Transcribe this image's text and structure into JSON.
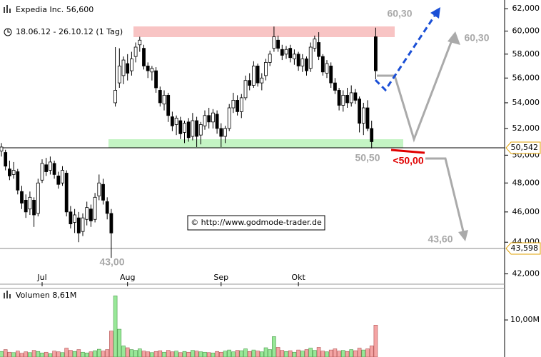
{
  "header": {
    "title": "Expedia Inc. 56,600",
    "period": "18.06.12 - 26.10.12 (1 Tag)",
    "watermark": "© http://www.godmode-trader.de"
  },
  "annotations": [
    "60,30",
    "60,30",
    "50,50",
    "<50,00",
    "43,60",
    "43,00"
  ],
  "chart_data": [
    {
      "type": "candlestick",
      "log_scale": true,
      "up_color": "#ffffff",
      "down_color": "#000000",
      "categories": [
        null,
        null,
        null,
        null,
        null,
        null,
        null,
        null,
        null,
        null,
        "Jul",
        null,
        null,
        null,
        null,
        null,
        null,
        null,
        null,
        null,
        null,
        null,
        null,
        null,
        null,
        null,
        null,
        null,
        null,
        null,
        null,
        "Aug",
        null,
        null,
        null,
        null,
        null,
        null,
        null,
        null,
        null,
        null,
        null,
        null,
        null,
        null,
        null,
        null,
        null,
        null,
        null,
        null,
        null,
        null,
        "Sep",
        null,
        null,
        null,
        null,
        null,
        null,
        null,
        null,
        null,
        null,
        null,
        null,
        null,
        null,
        null,
        null,
        null,
        null,
        "Okt",
        null,
        null,
        null,
        null,
        null,
        null,
        null,
        null,
        null,
        null,
        null,
        null,
        null,
        null,
        null,
        null,
        null,
        null,
        null
      ],
      "open": [
        50.3,
        50.2,
        49.0,
        48.6,
        48.8,
        47.4,
        46.8,
        46.2,
        46.8,
        45.9,
        48.2,
        49.3,
        48.9,
        49.4,
        48.5,
        48.0,
        48.7,
        46.0,
        45.3,
        45.6,
        44.7,
        45.5,
        46.2,
        45.5,
        47.1,
        47.9,
        46.7,
        45.9,
        54.0,
        55.6,
        56.2,
        57.2,
        56.6,
        57.8,
        58.8,
        58.5,
        57.0,
        56.5,
        56.6,
        55.0,
        53.9,
        54.6,
        52.9,
        52.3,
        52.6,
        51.7,
        52.5,
        51.4,
        52.6,
        51.5,
        52.2,
        53.0,
        52.5,
        53.1,
        52.0,
        51.4,
        52.0,
        53.6,
        54.2,
        53.3,
        54.4,
        55.8,
        55.4,
        57.0,
        55.6,
        56.2,
        57.3,
        58.5,
        59.2,
        58.4,
        58.0,
        58.5,
        57.6,
        58.0,
        57.0,
        57.6,
        56.8,
        58.5,
        59.0,
        57.8,
        56.4,
        57.0,
        55.6,
        55.0,
        53.8,
        54.6,
        54.0,
        54.8,
        54.3,
        52.4,
        53.6,
        52.0,
        59.5
      ],
      "high": [
        50.9,
        50.4,
        49.6,
        49.5,
        49.0,
        47.8,
        47.2,
        47.4,
        47.0,
        48.3,
        49.7,
        49.8,
        49.9,
        49.6,
        48.8,
        49.2,
        48.9,
        46.4,
        46.2,
        46.0,
        45.9,
        46.7,
        46.5,
        47.3,
        48.6,
        48.3,
        47.0,
        46.2,
        58.6,
        58.5,
        57.8,
        58.0,
        58.2,
        59.0,
        59.5,
        58.8,
        57.3,
        57.0,
        56.9,
        55.3,
        55.0,
        54.8,
        53.3,
        53.0,
        52.9,
        52.6,
        52.8,
        53.2,
        52.9,
        52.5,
        53.4,
        53.6,
        53.5,
        53.4,
        52.4,
        52.2,
        53.9,
        54.8,
        54.6,
        54.7,
        56.2,
        56.4,
        57.4,
        57.2,
        56.4,
        57.6,
        58.3,
        60.4,
        59.6,
        58.8,
        58.7,
        58.8,
        58.4,
        58.2,
        58.0,
        57.8,
        59.0,
        59.6,
        59.9,
        58.0,
        57.5,
        57.3,
        56.0,
        55.2,
        55.0,
        55.2,
        55.4,
        55.1,
        54.5,
        54.0,
        54.2,
        52.6,
        60.3
      ],
      "low": [
        49.9,
        48.9,
        48.2,
        48.3,
        47.2,
        46.2,
        45.6,
        45.8,
        45.0,
        45.7,
        48.0,
        48.5,
        48.6,
        48.3,
        47.6,
        47.8,
        45.7,
        44.9,
        44.6,
        44.0,
        44.4,
        45.1,
        45.0,
        45.3,
        46.8,
        46.5,
        45.5,
        43.0,
        53.7,
        55.2,
        55.5,
        55.8,
        56.2,
        57.3,
        58.2,
        56.7,
        56.0,
        55.8,
        54.8,
        53.7,
        53.4,
        52.5,
        51.8,
        51.5,
        51.2,
        50.9,
        51.0,
        51.1,
        50.6,
        50.8,
        51.9,
        52.0,
        52.0,
        51.6,
        50.6,
        50.9,
        51.8,
        53.2,
        53.0,
        52.8,
        54.2,
        55.0,
        55.2,
        55.3,
        55.0,
        55.8,
        57.0,
        58.2,
        58.2,
        57.5,
        57.6,
        57.3,
        57.1,
        56.6,
        56.5,
        56.2,
        56.5,
        58.2,
        57.5,
        56.2,
        56.0,
        55.2,
        54.7,
        53.4,
        53.3,
        53.6,
        53.7,
        53.9,
        51.7,
        51.5,
        51.8,
        50.5,
        55.9
      ],
      "close": [
        50.6,
        49.2,
        48.5,
        48.9,
        47.5,
        46.6,
        46.0,
        47.0,
        45.8,
        48.0,
        49.4,
        48.8,
        49.5,
        48.6,
        47.9,
        48.9,
        46.0,
        45.2,
        45.8,
        44.6,
        45.6,
        46.3,
        45.4,
        47.0,
        48.0,
        46.8,
        45.9,
        44.6,
        55.0,
        57.0,
        57.5,
        56.4,
        57.6,
        58.6,
        59.2,
        57.0,
        56.6,
        56.8,
        55.2,
        54.0,
        54.6,
        53.0,
        52.2,
        52.8,
        51.6,
        52.4,
        51.3,
        52.6,
        51.4,
        52.3,
        53.0,
        52.5,
        53.2,
        52.0,
        51.4,
        52.0,
        53.6,
        54.2,
        53.3,
        54.4,
        55.8,
        55.4,
        57.0,
        55.6,
        56.0,
        57.3,
        58.0,
        59.5,
        58.5,
        57.9,
        58.4,
        57.7,
        58.0,
        57.0,
        57.6,
        56.6,
        58.6,
        59.3,
        57.8,
        56.5,
        57.2,
        55.6,
        55.0,
        53.8,
        54.6,
        54.0,
        54.8,
        54.2,
        52.4,
        53.6,
        52.0,
        51.0,
        56.6
      ],
      "ylim": [
        41.5,
        62.8
      ],
      "yticks": [
        {
          "value": 62,
          "label": "62,000"
        },
        {
          "value": 60,
          "label": "60,000"
        },
        {
          "value": 58,
          "label": "58,000"
        },
        {
          "value": 56,
          "label": "56,000"
        },
        {
          "value": 54,
          "label": "54,000"
        },
        {
          "value": 52,
          "label": "52,000"
        },
        {
          "value": 50,
          "label": "50,000"
        },
        {
          "value": 48,
          "label": "48,000"
        },
        {
          "value": 46,
          "label": "46,000"
        },
        {
          "value": 44,
          "label": "44,000"
        },
        {
          "value": 42,
          "label": "42,000"
        }
      ],
      "reference_lines": [
        {
          "value": 50.542,
          "label": "50,542",
          "color": "#000000"
        },
        {
          "value": 43.598,
          "label": "43,598",
          "color": "#888888"
        }
      ]
    },
    {
      "type": "bar",
      "title": "Volumen 8,61M",
      "up_color": "#98e898",
      "down_color": "#f4a4a4",
      "values": [
        1.5,
        2.0,
        1.3,
        1.2,
        1.6,
        1.0,
        1.4,
        1.2,
        1.8,
        1.5,
        1.1,
        1.3,
        0.9,
        1.6,
        1.4,
        1.2,
        2.4,
        1.8,
        1.5,
        2.0,
        1.3,
        1.1,
        1.4,
        1.7,
        2.1,
        1.6,
        2.0,
        7.0,
        16.5,
        7.5,
        3.0,
        2.5,
        2.0,
        1.8,
        2.2,
        1.6,
        1.4,
        1.2,
        1.5,
        1.7,
        1.3,
        1.8,
        1.4,
        1.6,
        1.2,
        1.5,
        1.3,
        1.8,
        1.6,
        1.4,
        1.3,
        1.2,
        1.1,
        1.5,
        1.3,
        1.6,
        1.9,
        1.4,
        1.8,
        1.7,
        2.2,
        1.5,
        1.9,
        1.6,
        1.4,
        2.5,
        2.0,
        5.5,
        2.6,
        1.8,
        1.5,
        1.7,
        1.3,
        1.9,
        1.6,
        2.0,
        2.4,
        1.8,
        2.6,
        1.6,
        1.4,
        1.9,
        2.2,
        1.6,
        1.8,
        1.5,
        2.0,
        1.7,
        2.4,
        1.9,
        2.2,
        3.0,
        8.61
      ],
      "ylim": [
        0,
        18.3
      ],
      "yticks": [
        {
          "value": 10,
          "label": "10,00M"
        }
      ]
    }
  ]
}
